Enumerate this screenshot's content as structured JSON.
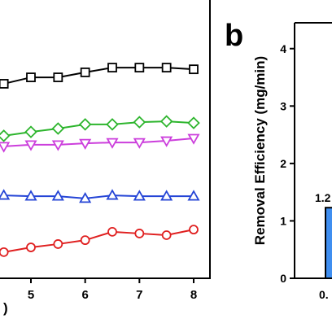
{
  "chart_data": [
    {
      "type": "line",
      "x_label": ")",
      "x": [
        4.5,
        5,
        5.5,
        6,
        6.5,
        7,
        7.5,
        8
      ],
      "xlim": [
        4.43,
        8.3
      ],
      "xticks": [
        5,
        6,
        7,
        8
      ],
      "ylim": [
        0,
        100
      ],
      "series": [
        {
          "color": "#000000",
          "marker": "square",
          "values": [
            69.9,
            72.2,
            72.2,
            74.0,
            75.7,
            75.7,
            75.7,
            75.1
          ]
        },
        {
          "color": "#2db52d",
          "marker": "diamond",
          "values": [
            51.2,
            52.6,
            53.8,
            55.3,
            55.3,
            56.1,
            56.4,
            55.8
          ]
        },
        {
          "color": "#cc3fdc",
          "marker": "triangle-down",
          "values": [
            47.4,
            48.0,
            48.0,
            48.5,
            48.8,
            48.8,
            49.4,
            50.3
          ]
        },
        {
          "color": "#2545d6",
          "marker": "triangle-up",
          "values": [
            29.8,
            29.5,
            29.5,
            28.7,
            29.8,
            29.5,
            29.5,
            29.5
          ]
        },
        {
          "color": "#e02020",
          "marker": "circle",
          "values": [
            9.4,
            11.1,
            12.3,
            13.7,
            16.7,
            16.1,
            15.5,
            17.5
          ]
        }
      ]
    },
    {
      "type": "bar",
      "panel_label": "b",
      "y_label": "Removal Efficiency (mg/min)",
      "categories": [
        "0."
      ],
      "values": [
        1.23
      ],
      "value_labels": [
        "1.2"
      ],
      "color": "#3f8ef0",
      "ylim": [
        0,
        4.45
      ],
      "yticks": [
        0,
        1,
        2,
        3,
        4
      ]
    }
  ]
}
